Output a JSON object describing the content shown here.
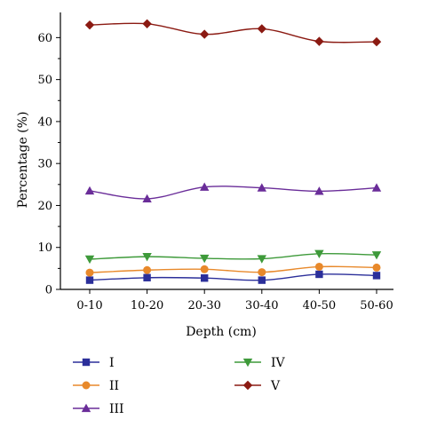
{
  "chart_data": {
    "type": "line",
    "categories": [
      "0-10",
      "10-20",
      "20-30",
      "30-40",
      "40-50",
      "50-60"
    ],
    "xlabel": "Depth (cm)",
    "ylabel": "Percentage (%)",
    "ylim": [
      0,
      66
    ],
    "yticks": [
      0,
      10,
      20,
      30,
      40,
      50,
      60
    ],
    "grid": false,
    "legend_position": "bottom",
    "series": [
      {
        "name": "I",
        "color": "#2b2f9a",
        "marker": "square",
        "values": [
          2.2,
          2.8,
          2.7,
          2.2,
          3.6,
          3.3
        ]
      },
      {
        "name": "II",
        "color": "#e8892b",
        "marker": "circle",
        "values": [
          4.0,
          4.6,
          4.8,
          4.1,
          5.4,
          5.2
        ]
      },
      {
        "name": "III",
        "color": "#6a2d99",
        "marker": "triangle-up",
        "values": [
          23.5,
          21.6,
          24.4,
          24.2,
          23.4,
          24.2
        ]
      },
      {
        "name": "IV",
        "color": "#3e9a3a",
        "marker": "triangle-down",
        "values": [
          7.2,
          7.8,
          7.4,
          7.3,
          8.5,
          8.2
        ]
      },
      {
        "name": "V",
        "color": "#8b1a12",
        "marker": "diamond",
        "values": [
          63.0,
          63.3,
          60.8,
          62.1,
          59.1,
          59.0
        ]
      }
    ]
  }
}
